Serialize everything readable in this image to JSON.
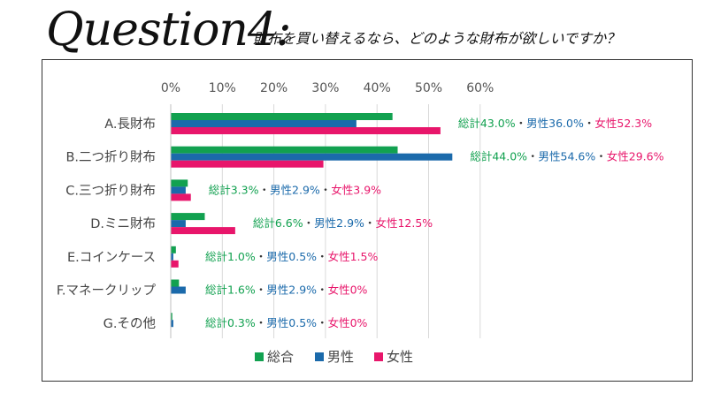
{
  "header": {
    "logo": "Question4:",
    "question": "財布を買い替えるなら、どのような財布が欲しいですか？"
  },
  "colors": {
    "total": "#12a150",
    "male": "#1b6aab",
    "female": "#e8166b"
  },
  "chart_data": {
    "type": "bar",
    "orientation": "horizontal",
    "categories": [
      "A.長財布",
      "B.二つ折り財布",
      "C.三つ折り財布",
      "D.ミニ財布",
      "E.コインケース",
      "F.マネークリップ",
      "G.その他"
    ],
    "series": [
      {
        "name": "総合",
        "values": [
          43.0,
          44.0,
          3.3,
          6.6,
          1.0,
          1.6,
          0.3
        ]
      },
      {
        "name": "男性",
        "values": [
          36.0,
          54.6,
          2.9,
          2.9,
          0.5,
          2.9,
          0.5
        ]
      },
      {
        "name": "女性",
        "values": [
          52.3,
          29.6,
          3.9,
          12.5,
          1.5,
          0,
          0
        ]
      }
    ],
    "xticks": [
      "0%",
      "10%",
      "20%",
      "30%",
      "40%",
      "50%",
      "60%"
    ],
    "xlim": [
      0,
      60
    ],
    "grid": true,
    "legend": "bottom",
    "annotations": [
      {
        "total": "総計43.0%",
        "sep1": "・",
        "male": "男性36.0%",
        "sep2": "・",
        "female": "女性52.3%"
      },
      {
        "total": "総計44.0%",
        "sep1": "・",
        "male": "男性54.6%",
        "sep2": "・",
        "female": "女性29.6%"
      },
      {
        "total": "総計3.3%",
        "sep1": "・",
        "male": "男性2.9%",
        "sep2": "・",
        "female": "女性3.9%"
      },
      {
        "total": "総計6.6%",
        "sep1": "・",
        "male": "男性2.9%",
        "sep2": "・",
        "female": "女性12.5%"
      },
      {
        "total": "総計1.0%",
        "sep1": "・",
        "male": "男性0.5%",
        "sep2": "・",
        "female": "女性1.5%"
      },
      {
        "total": "総計1.6%",
        "sep1": "・",
        "male": "男性2.9%",
        "sep2": "・",
        "female": "女性0%"
      },
      {
        "total": "総計0.3%",
        "sep1": "・",
        "male": "男性0.5%",
        "sep2": "・",
        "female": "女性0%"
      }
    ]
  }
}
